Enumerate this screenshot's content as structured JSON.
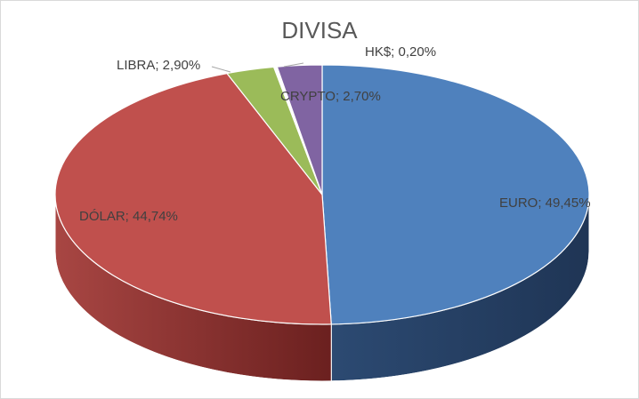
{
  "chart_data": {
    "type": "pie",
    "title": "DIVISA",
    "slices": [
      {
        "label": "EURO",
        "value": 49.45,
        "display": "EURO; 49,45%",
        "color": "#4f81bd",
        "side_dark": "#1f3555",
        "side_light": "#2c4a72"
      },
      {
        "label": "DÓLAR",
        "value": 44.74,
        "display": "DÓLAR; 44,74%",
        "color": "#c0504d",
        "side_dark": "#6b201f",
        "side_light": "#a84643"
      },
      {
        "label": "LIBRA",
        "value": 2.9,
        "display": "LIBRA; 2,90%",
        "color": "#9bbb59",
        "side_dark": "#5d7232",
        "side_light": "#7f9b47"
      },
      {
        "label": "HK$",
        "value": 0.2,
        "display": "HK$; 0,20%",
        "color": "#ffffff",
        "side_dark": "#cccccc",
        "side_light": "#eeeeee"
      },
      {
        "label": "CRYPTO",
        "value": 2.7,
        "display": "CRYPTO; 2,70%",
        "color": "#8064a2",
        "side_dark": "#4a3a60",
        "side_light": "#6a5388"
      }
    ]
  }
}
